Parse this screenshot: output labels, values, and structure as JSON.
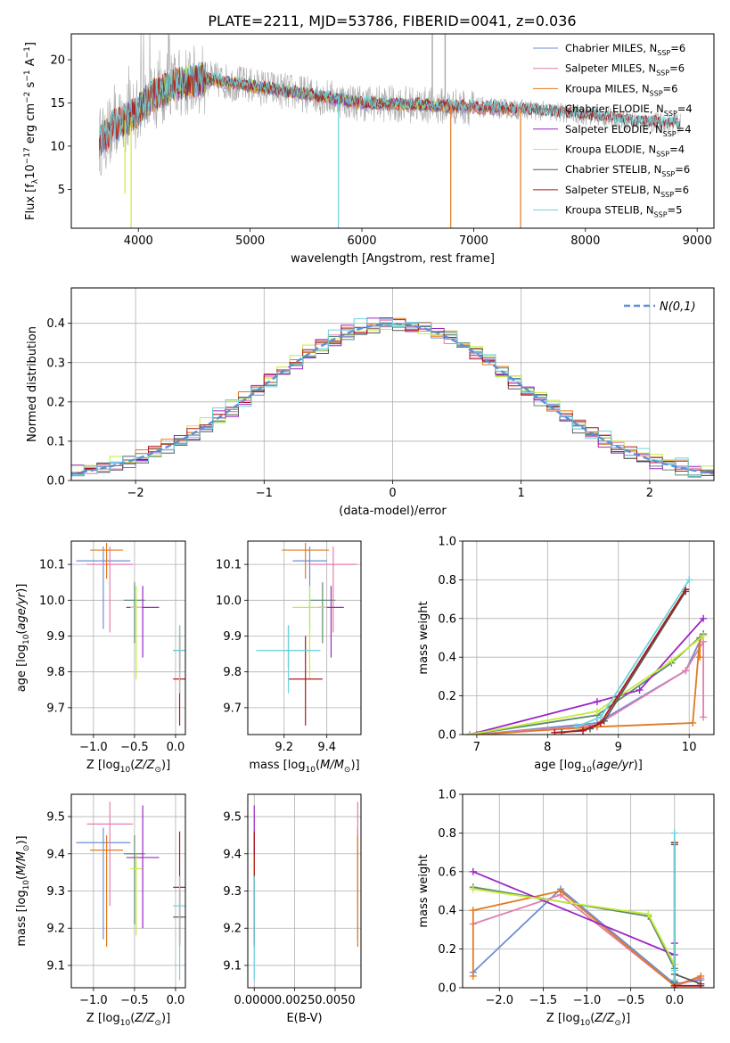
{
  "figure_title": "PLATE=2211, MJD=53786, FIBERID=0041, z=0.036",
  "colors": {
    "Chabrier MILES": "#6a8fd6",
    "Salpeter MILES": "#e37eaf",
    "Kroupa MILES": "#e07b1f",
    "Chabrier ELODIE": "#5e8a70",
    "Salpeter ELODIE": "#9b27c4",
    "Kroupa ELODIE": "#c6ec3c",
    "Chabrier STELIB": "#595959",
    "Salpeter STELIB": "#b01717",
    "Kroupa STELIB": "#6dd3dd",
    "normal": "#5b8fd9",
    "data": "#a9a9a9"
  },
  "chart_data": [
    {
      "id": "spectrum",
      "type": "line",
      "xlabel": "wavelength [Angstrom, rest frame]",
      "ylabel": "Flux [f",
      "ylabel_parts": [
        "Flux [f",
        "λ",
        "10",
        "−17",
        " erg cm",
        "−2",
        " s",
        "−1",
        " A",
        "−1",
        "]"
      ],
      "xlim": [
        3400,
        9150
      ],
      "ylim": [
        0.5,
        23
      ],
      "xticks": [
        4000,
        5000,
        6000,
        7000,
        8000,
        9000
      ],
      "yticks": [
        5,
        10,
        15,
        20
      ],
      "grid": false,
      "legend_position": "top-right",
      "legend": [
        {
          "name": "Chabrier MILES",
          "base": "Chabrier MILES, N",
          "sub": "SSP",
          "tail": "=6"
        },
        {
          "name": "Salpeter MILES",
          "base": "Salpeter MILES, N",
          "sub": "SSP",
          "tail": "=6"
        },
        {
          "name": "Kroupa MILES",
          "base": "Kroupa MILES, N",
          "sub": "SSP",
          "tail": "=6"
        },
        {
          "name": "Chabrier ELODIE",
          "base": "Chabrier ELODIE, N",
          "sub": "SSP",
          "tail": "=4"
        },
        {
          "name": "Salpeter ELODIE",
          "base": "Salpeter ELODIE, N",
          "sub": "SSP",
          "tail": "=4"
        },
        {
          "name": "Kroupa ELODIE",
          "base": "Kroupa ELODIE, N",
          "sub": "SSP",
          "tail": "=4"
        },
        {
          "name": "Chabrier STELIB",
          "base": "Chabrier STELIB, N",
          "sub": "SSP",
          "tail": "=6"
        },
        {
          "name": "Salpeter STELIB",
          "base": "Salpeter STELIB, N",
          "sub": "SSP",
          "tail": "=6"
        },
        {
          "name": "Kroupa STELIB",
          "base": "Kroupa STELIB, N",
          "sub": "SSP",
          "tail": "=5"
        }
      ],
      "continuum": [
        [
          3650,
          10.5
        ],
        [
          3800,
          12.5
        ],
        [
          3950,
          13.5
        ],
        [
          4100,
          15.5
        ],
        [
          4300,
          17.0
        ],
        [
          4600,
          17.8
        ],
        [
          5000,
          17.0
        ],
        [
          5500,
          16.0
        ],
        [
          6000,
          15.0
        ],
        [
          6500,
          14.8
        ],
        [
          7000,
          14.5
        ],
        [
          7500,
          14.2
        ],
        [
          8000,
          13.6
        ],
        [
          8500,
          12.8
        ],
        [
          8850,
          12.6
        ]
      ],
      "data_xrange": [
        3650,
        8850
      ],
      "model_xranges": {
        "Chabrier MILES": [
          3650,
          7410
        ],
        "Salpeter MILES": [
          3650,
          7410
        ],
        "Kroupa MILES": [
          3650,
          7410
        ],
        "Chabrier ELODIE": [
          3900,
          6800
        ],
        "Salpeter ELODIE": [
          3900,
          6800
        ],
        "Kroupa ELODIE": [
          3900,
          6800
        ],
        "Chabrier STELIB": [
          3650,
          8850
        ],
        "Salpeter STELIB": [
          3650,
          8850
        ],
        "Kroupa STELIB": [
          3650,
          8850
        ]
      },
      "spikes": [
        [
          3880,
          4.5
        ],
        [
          3935,
          0.5
        ],
        [
          5790,
          0.5
        ],
        [
          6795,
          0.5
        ],
        [
          7420,
          0.5
        ]
      ]
    },
    {
      "id": "residuals",
      "type": "histogram",
      "xlabel": "(data-model)/error",
      "ylabel": "Normed distribution",
      "xlim": [
        -2.5,
        2.5
      ],
      "ylim": [
        0,
        0.49
      ],
      "xticks": [
        -2,
        -1,
        0,
        1,
        2
      ],
      "yticks": [
        0.0,
        0.1,
        0.2,
        0.3,
        0.4
      ],
      "grid": true,
      "bin_width": 0.1,
      "legend_position": "top-right",
      "reference_label": "N(0,1)",
      "reference_curve": "standard normal N(0,1)",
      "histograms": [
        {
          "name": "Chabrier MILES",
          "jitter": 0.01
        },
        {
          "name": "Salpeter MILES",
          "jitter": 0.013
        },
        {
          "name": "Kroupa MILES",
          "jitter": 0.016
        },
        {
          "name": "Chabrier ELODIE",
          "jitter": 0.014
        },
        {
          "name": "Salpeter ELODIE",
          "jitter": 0.02
        },
        {
          "name": "Kroupa ELODIE",
          "jitter": 0.018
        },
        {
          "name": "Chabrier STELIB",
          "jitter": 0.017
        },
        {
          "name": "Salpeter STELIB",
          "jitter": 0.015
        },
        {
          "name": "Kroupa STELIB",
          "jitter": 0.022
        }
      ]
    },
    {
      "id": "age_vs_Z",
      "type": "errorbar",
      "xlabel": "Z [log10(Z/Z⊙)]",
      "ylabel": "age  [log10(age/yr)]",
      "xlim": [
        -1.27,
        0.12
      ],
      "ylim": [
        9.625,
        10.165
      ],
      "xticks": [
        -1.0,
        -0.5,
        0.0
      ],
      "yticks": [
        9.7,
        9.8,
        9.9,
        10.0,
        10.1
      ],
      "grid": true,
      "points": [
        {
          "name": "Chabrier MILES",
          "x": -0.88,
          "xerr": 0.33,
          "y": 10.11,
          "yerr": 0.04,
          "lo": 0.19
        },
        {
          "name": "Salpeter MILES",
          "x": -0.8,
          "xerr": 0.28,
          "y": 10.1,
          "yerr": 0.05,
          "lo": 0.19
        },
        {
          "name": "Kroupa MILES",
          "x": -0.84,
          "xerr": 0.2,
          "y": 10.14,
          "yerr": 0.02,
          "lo": 0.08
        },
        {
          "name": "Chabrier ELODIE",
          "x": -0.5,
          "xerr": 0.13,
          "y": 10.0,
          "yerr": 0.05,
          "lo": 0.12
        },
        {
          "name": "Salpeter ELODIE",
          "x": -0.4,
          "xerr": 0.2,
          "y": 9.98,
          "yerr": 0.06,
          "lo": 0.14
        },
        {
          "name": "Kroupa ELODIE",
          "x": -0.48,
          "xerr": 0.07,
          "y": 9.98,
          "yerr": 0.06,
          "lo": 0.2
        },
        {
          "name": "Chabrier STELIB",
          "x": 0.05,
          "xerr": 0.08,
          "y": 9.86,
          "yerr": 0.07,
          "lo": 0.05
        },
        {
          "name": "Salpeter STELIB",
          "x": 0.05,
          "xerr": 0.08,
          "y": 9.78,
          "yerr": 0.12,
          "lo": 0.13
        },
        {
          "name": "Kroupa STELIB",
          "x": 0.05,
          "xerr": 0.08,
          "y": 9.86,
          "yerr": 0.07,
          "lo": 0.12
        }
      ]
    },
    {
      "id": "age_vs_mass",
      "type": "errorbar",
      "xlabel": "mass [log10(M/M⊙)]",
      "ylabel": "",
      "xlim": [
        9.03,
        9.56
      ],
      "ylim": [
        9.625,
        10.165
      ],
      "xticks": [
        9.2,
        9.4
      ],
      "yticks": [
        9.7,
        9.8,
        9.9,
        10.0,
        10.1
      ],
      "grid": true,
      "points": [
        {
          "name": "Chabrier MILES",
          "x": 9.32,
          "xerr": 0.08,
          "y": 10.11,
          "yerr": 0.04,
          "lo": 0.19
        },
        {
          "name": "Salpeter MILES",
          "x": 9.43,
          "xerr": 0.11,
          "y": 10.1,
          "yerr": 0.05,
          "lo": 0.19
        },
        {
          "name": "Kroupa MILES",
          "x": 9.3,
          "xerr": 0.11,
          "y": 10.14,
          "yerr": 0.02,
          "lo": 0.08
        },
        {
          "name": "Chabrier ELODIE",
          "x": 9.38,
          "xerr": 0.06,
          "y": 10.0,
          "yerr": 0.05,
          "lo": 0.12
        },
        {
          "name": "Salpeter ELODIE",
          "x": 9.42,
          "xerr": 0.06,
          "y": 9.98,
          "yerr": 0.06,
          "lo": 0.14
        },
        {
          "name": "Kroupa ELODIE",
          "x": 9.32,
          "xerr": 0.08,
          "y": 9.98,
          "yerr": 0.06,
          "lo": 0.2
        },
        {
          "name": "Chabrier STELIB",
          "x": 9.22,
          "xerr": 0.15,
          "y": 9.86,
          "yerr": 0.07,
          "lo": 0.05
        },
        {
          "name": "Salpeter STELIB",
          "x": 9.3,
          "xerr": 0.08,
          "y": 9.78,
          "yerr": 0.12,
          "lo": 0.13
        },
        {
          "name": "Kroupa STELIB",
          "x": 9.22,
          "xerr": 0.15,
          "y": 9.86,
          "yerr": 0.07,
          "lo": 0.12
        }
      ]
    },
    {
      "id": "weight_vs_age",
      "type": "line",
      "xlabel": "age  [log10(age/yr)]",
      "ylabel": "mass weight",
      "xlim": [
        6.8,
        10.35
      ],
      "ylim": [
        0,
        1.0
      ],
      "xticks": [
        7,
        8,
        9,
        10
      ],
      "yticks": [
        0.0,
        0.2,
        0.4,
        0.6,
        0.8,
        1.0
      ],
      "grid": true,
      "series": [
        {
          "name": "Chabrier MILES",
          "x": [
            7.0,
            8.7,
            9.95,
            10.2
          ],
          "y": [
            0.0,
            0.06,
            0.33,
            0.52
          ]
        },
        {
          "name": "Salpeter MILES",
          "x": [
            7.0,
            8.7,
            9.95,
            10.2,
            10.2
          ],
          "y": [
            0.0,
            0.05,
            0.33,
            0.48,
            0.09
          ]
        },
        {
          "name": "Kroupa MILES",
          "x": [
            7.0,
            8.7,
            10.05,
            10.15,
            10.15
          ],
          "y": [
            0.0,
            0.04,
            0.06,
            0.5,
            0.4
          ]
        },
        {
          "name": "Chabrier ELODIE",
          "x": [
            6.9,
            8.7,
            9.75,
            10.2
          ],
          "y": [
            0.0,
            0.1,
            0.37,
            0.52
          ]
        },
        {
          "name": "Salpeter ELODIE",
          "x": [
            6.9,
            8.7,
            9.3,
            10.2
          ],
          "y": [
            0.0,
            0.17,
            0.23,
            0.6
          ]
        },
        {
          "name": "Kroupa ELODIE",
          "x": [
            6.9,
            8.7,
            9.75,
            10.2
          ],
          "y": [
            0.0,
            0.12,
            0.38,
            0.51
          ]
        },
        {
          "name": "Chabrier STELIB",
          "x": [
            8.2,
            8.6,
            8.8,
            9.95
          ],
          "y": [
            0.01,
            0.03,
            0.07,
            0.74
          ]
        },
        {
          "name": "Salpeter STELIB",
          "x": [
            8.1,
            8.5,
            8.75,
            9.95
          ],
          "y": [
            0.01,
            0.02,
            0.06,
            0.75
          ]
        },
        {
          "name": "Kroupa STELIB",
          "x": [
            8.4,
            8.75,
            10.0
          ],
          "y": [
            0.04,
            0.09,
            0.8
          ]
        }
      ]
    },
    {
      "id": "mass_vs_Z",
      "type": "errorbar",
      "xlabel": "Z [log10(Z/Z⊙)]",
      "ylabel": "mass [log10(M/M⊙)]",
      "xlim": [
        -1.27,
        0.12
      ],
      "ylim": [
        9.04,
        9.56
      ],
      "xticks": [
        -1.0,
        -0.5,
        0.0
      ],
      "yticks": [
        9.1,
        9.2,
        9.3,
        9.4,
        9.5
      ],
      "grid": true,
      "points": [
        {
          "name": "Chabrier MILES",
          "x": -0.88,
          "xerr": 0.33,
          "y": 9.43,
          "yerr": 0.04,
          "lo": 0.26
        },
        {
          "name": "Salpeter MILES",
          "x": -0.8,
          "xerr": 0.28,
          "y": 9.48,
          "yerr": 0.06,
          "lo": 0.22
        },
        {
          "name": "Kroupa MILES",
          "x": -0.84,
          "xerr": 0.2,
          "y": 9.41,
          "yerr": 0.04,
          "lo": 0.26
        },
        {
          "name": "Chabrier ELODIE",
          "x": -0.5,
          "xerr": 0.13,
          "y": 9.4,
          "yerr": 0.05,
          "lo": 0.19
        },
        {
          "name": "Salpeter ELODIE",
          "x": -0.4,
          "xerr": 0.2,
          "y": 9.39,
          "yerr": 0.14,
          "lo": 0.19
        },
        {
          "name": "Kroupa ELODIE",
          "x": -0.48,
          "xerr": 0.07,
          "y": 9.36,
          "yerr": 0.04,
          "lo": 0.18
        },
        {
          "name": "Chabrier STELIB",
          "x": 0.05,
          "xerr": 0.08,
          "y": 9.23,
          "yerr": 0.07,
          "lo": 0.07
        },
        {
          "name": "Salpeter STELIB",
          "x": 0.05,
          "xerr": 0.08,
          "y": 9.31,
          "yerr": 0.15,
          "lo": 0.16
        },
        {
          "name": "Kroupa STELIB",
          "x": 0.05,
          "xerr": 0.08,
          "y": 9.26,
          "yerr": 0.08,
          "lo": 0.2
        }
      ]
    },
    {
      "id": "mass_vs_EBV",
      "type": "errorbar",
      "xlabel": "E(B-V)",
      "ylabel": "",
      "xlim": [
        -0.0004,
        0.0066
      ],
      "ylim": [
        9.04,
        9.56
      ],
      "xticks": [
        0.0,
        0.0025,
        0.005
      ],
      "xtick_labels": [
        "0.0000",
        "0.0025",
        "0.0050"
      ],
      "yticks": [
        9.1,
        9.2,
        9.3,
        9.4,
        9.5
      ],
      "grid": true,
      "points": [
        {
          "name": "Chabrier MILES",
          "x": 0.0064,
          "y": 9.43,
          "yerr": 0.04,
          "lo": 0.26
        },
        {
          "name": "Salpeter MILES",
          "x": 0.0064,
          "y": 9.48,
          "yerr": 0.06,
          "lo": 0.22
        },
        {
          "name": "Kroupa MILES",
          "x": 0.0064,
          "y": 9.41,
          "yerr": 0.04,
          "lo": 0.26
        },
        {
          "name": "Chabrier ELODIE",
          "x": 0.0,
          "y": 9.4,
          "yerr": 0.05,
          "lo": 0.19
        },
        {
          "name": "Salpeter ELODIE",
          "x": 0.0,
          "y": 9.39,
          "yerr": 0.14,
          "lo": 0.19
        },
        {
          "name": "Kroupa ELODIE",
          "x": 0.0,
          "y": 9.36,
          "yerr": 0.04,
          "lo": 0.18
        },
        {
          "name": "Chabrier STELIB",
          "x": 0.0,
          "y": 9.23,
          "yerr": 0.07,
          "lo": 0.07
        },
        {
          "name": "Salpeter STELIB",
          "x": 0.0,
          "y": 9.31,
          "yerr": 0.15,
          "lo": 0.16
        },
        {
          "name": "Kroupa STELIB",
          "x": 0.0,
          "y": 9.26,
          "yerr": 0.08,
          "lo": 0.2
        }
      ]
    },
    {
      "id": "weight_vs_Z",
      "type": "line",
      "xlabel": "Z [log10(Z/Z⊙)]",
      "ylabel": "mass weight",
      "xlim": [
        -2.42,
        0.45
      ],
      "ylim": [
        0,
        1.0
      ],
      "xticks": [
        -2.0,
        -1.5,
        -1.0,
        -0.5,
        0.0
      ],
      "yticks": [
        0.0,
        0.2,
        0.4,
        0.6,
        0.8,
        1.0
      ],
      "grid": true,
      "series": [
        {
          "name": "Chabrier MILES",
          "x": [
            -2.3,
            -1.3,
            0.0,
            0.3
          ],
          "y": [
            0.08,
            0.51,
            0.02,
            0.04
          ]
        },
        {
          "name": "Salpeter MILES",
          "x": [
            -2.3,
            -1.3,
            0.0,
            0.3
          ],
          "y": [
            0.33,
            0.48,
            0.01,
            0.05
          ]
        },
        {
          "name": "Kroupa MILES",
          "x": [
            -2.3,
            -2.3,
            -1.3,
            0.0,
            0.3
          ],
          "y": [
            0.06,
            0.4,
            0.5,
            0.01,
            0.06
          ]
        },
        {
          "name": "Chabrier ELODIE",
          "x": [
            -2.3,
            -0.3,
            0.0
          ],
          "y": [
            0.52,
            0.37,
            0.1
          ]
        },
        {
          "name": "Salpeter ELODIE",
          "x": [
            -2.3,
            0.0,
            0.0,
            0.0
          ],
          "y": [
            0.6,
            0.17,
            0.23,
            0.0
          ]
        },
        {
          "name": "Kroupa ELODIE",
          "x": [
            -2.3,
            -0.3,
            0.0
          ],
          "y": [
            0.51,
            0.38,
            0.12
          ]
        },
        {
          "name": "Chabrier STELIB",
          "x": [
            0.0,
            0.0,
            0.0,
            0.3
          ],
          "y": [
            0.74,
            0.03,
            0.07,
            0.02
          ]
        },
        {
          "name": "Salpeter STELIB",
          "x": [
            0.0,
            0.0,
            0.3
          ],
          "y": [
            0.75,
            0.01,
            0.01
          ]
        },
        {
          "name": "Kroupa STELIB",
          "x": [
            0.0,
            0.0,
            0.0
          ],
          "y": [
            0.8,
            0.04,
            0.09
          ]
        }
      ]
    }
  ]
}
